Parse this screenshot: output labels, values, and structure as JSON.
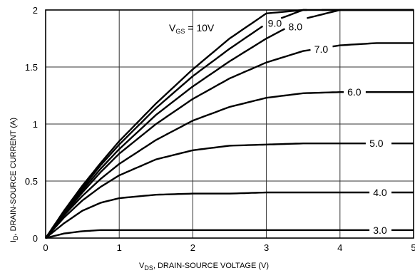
{
  "chart_data": {
    "type": "line",
    "title": "",
    "xlabel_main": "V",
    "xlabel_sub": "DS",
    "xlabel_rest": ", DRAIN-SOURCE VOLTAGE (V)",
    "ylabel_main": "I",
    "ylabel_sub": "D",
    "ylabel_rest": ", DRAIN-SOURCE CURRENT (A)",
    "xlim": [
      0,
      5
    ],
    "ylim": [
      0,
      2
    ],
    "x_ticks": [
      "0",
      "1",
      "2",
      "3",
      "4",
      "5"
    ],
    "y_ticks": [
      "0",
      "0.5",
      "1",
      "1.5",
      "2"
    ],
    "grid": true,
    "x": [
      0,
      0.25,
      0.5,
      0.75,
      1,
      1.5,
      2,
      2.5,
      3,
      3.5,
      4,
      4.5,
      5
    ],
    "series": [
      {
        "label_prefix": "V",
        "label_sub": "GS",
        "label_rest": " = 10V",
        "values": [
          0,
          0.24,
          0.46,
          0.66,
          0.85,
          1.18,
          1.48,
          1.75,
          1.97,
          2.0,
          2.0,
          2.0,
          2.0
        ]
      },
      {
        "label": "9.0",
        "values": [
          0,
          0.23,
          0.44,
          0.64,
          0.82,
          1.14,
          1.42,
          1.66,
          1.88,
          2.0,
          2.0,
          2.0,
          2.0
        ]
      },
      {
        "label": "8.0",
        "values": [
          0,
          0.22,
          0.42,
          0.61,
          0.78,
          1.08,
          1.33,
          1.55,
          1.75,
          1.92,
          2.0,
          2.0,
          2.0
        ]
      },
      {
        "label": "7.0",
        "values": [
          0,
          0.21,
          0.4,
          0.58,
          0.74,
          1.0,
          1.22,
          1.4,
          1.54,
          1.64,
          1.69,
          1.71,
          1.71
        ]
      },
      {
        "label": "6.0",
        "values": [
          0,
          0.2,
          0.37,
          0.52,
          0.65,
          0.86,
          1.03,
          1.15,
          1.23,
          1.27,
          1.28,
          1.28,
          1.28
        ]
      },
      {
        "label": "5.0",
        "values": [
          0,
          0.18,
          0.33,
          0.45,
          0.55,
          0.69,
          0.77,
          0.81,
          0.82,
          0.83,
          0.83,
          0.83,
          0.83
        ]
      },
      {
        "label": "4.0",
        "values": [
          0,
          0.13,
          0.24,
          0.31,
          0.35,
          0.38,
          0.39,
          0.39,
          0.4,
          0.4,
          0.4,
          0.4,
          0.4
        ]
      },
      {
        "label": "3.0",
        "values": [
          0,
          0.04,
          0.06,
          0.07,
          0.07,
          0.07,
          0.07,
          0.07,
          0.07,
          0.07,
          0.07,
          0.07,
          0.07
        ]
      }
    ]
  }
}
